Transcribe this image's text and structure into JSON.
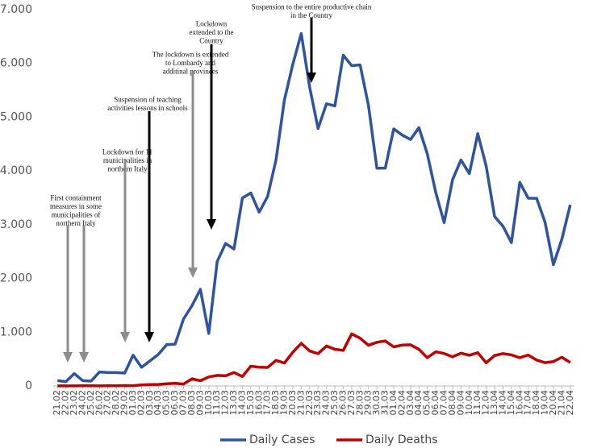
{
  "chart_data": {
    "type": "line",
    "categories": [
      "21.02",
      "22.02",
      "23.02",
      "24.02",
      "25.02",
      "26.02",
      "27.02",
      "28.02",
      "29.02",
      "01.03",
      "02.03",
      "03.03",
      "04.03",
      "05.03",
      "06.03",
      "07.03",
      "08.03",
      "09.03",
      "10.03",
      "11.03",
      "12.03",
      "13.03",
      "14.03",
      "15.03",
      "16.03",
      "17.03",
      "18.03",
      "19.03",
      "20.03",
      "21.03",
      "22.03",
      "23.03",
      "24.03",
      "25.03",
      "26.03",
      "27.03",
      "28.03",
      "29.03",
      "30.03",
      "31.03",
      "01.04",
      "02.04",
      "03.04",
      "04.04",
      "05.04",
      "06.04",
      "07.04",
      "08.04",
      "09.04",
      "10.04",
      "11.04",
      "12.04",
      "13.04",
      "14.04",
      "15.04",
      "16.04",
      "17.04",
      "18.04",
      "19.04",
      "20.04",
      "21.04",
      "22.04"
    ],
    "series": [
      {
        "name": "Daily Cases",
        "color": "#2e54a0",
        "values": [
          100,
          80,
          230,
          100,
          90,
          260,
          250,
          250,
          240,
          573,
          347,
          466,
          587,
          769,
          778,
          1247,
          1492,
          1797,
          977,
          2313,
          2651,
          2547,
          3497,
          3590,
          3233,
          3526,
          4207,
          5322,
          5986,
          6557,
          5560,
          4789,
          5249,
          5210,
          6153,
          5959,
          5974,
          5217,
          4050,
          4053,
          4782,
          4668,
          4585,
          4805,
          4316,
          3599,
          3039,
          3836,
          4204,
          3951,
          4694,
          4092,
          3153,
          2972,
          2667,
          3786,
          3493,
          3491,
          3047,
          2256,
          2729,
          3370
        ]
      },
      {
        "name": "Daily Deaths",
        "color": "#c00000",
        "values": [
          1,
          1,
          1,
          4,
          4,
          1,
          5,
          4,
          8,
          5,
          18,
          27,
          28,
          41,
          49,
          36,
          133,
          97,
          168,
          196,
          189,
          250,
          175,
          368,
          349,
          345,
          475,
          427,
          627,
          793,
          651,
          601,
          743,
          683,
          662,
          969,
          889,
          756,
          812,
          837,
          727,
          760,
          766,
          681,
          525,
          636,
          604,
          542,
          610,
          570,
          619,
          431,
          566,
          602,
          578,
          525,
          575,
          482,
          433,
          454,
          534,
          437
        ]
      }
    ],
    "ylim": [
      0,
      7000
    ],
    "yticks": [
      0,
      {
        "value": 1000,
        "label": "1.000"
      },
      {
        "value": 2000,
        "label": "2.000"
      },
      {
        "value": 3000,
        "label": "3.000"
      },
      {
        "value": 4000,
        "label": "4.000"
      },
      {
        "value": 5000,
        "label": "5.000"
      },
      {
        "value": 6000,
        "label": "6.000"
      },
      {
        "value": 7000,
        "label": "7.000"
      }
    ],
    "legend": "bottom",
    "annotations": [
      {
        "lines": [
          "First containment",
          "measures in some",
          "municipalities of",
          "northern Italy"
        ],
        "color": "#8c8c8c"
      },
      {
        "lines": [
          "Lockdown for 11",
          "municipalities in",
          "northern Italy"
        ],
        "color": "#8c8c8c"
      },
      {
        "lines": [
          "Suspension of teaching",
          "activities lessons in schools"
        ],
        "color": "#000000"
      },
      {
        "lines": [
          "The lockdown is extended",
          "to Lombardy and",
          "additinal provinces"
        ],
        "color": "#8c8c8c"
      },
      {
        "lines": [
          "Lockdown",
          "extended to the",
          "Country"
        ],
        "color": "#000000"
      },
      {
        "lines": [
          "Suspension to the entire productive  chain",
          "in the Country"
        ],
        "color": "#000000"
      }
    ]
  }
}
